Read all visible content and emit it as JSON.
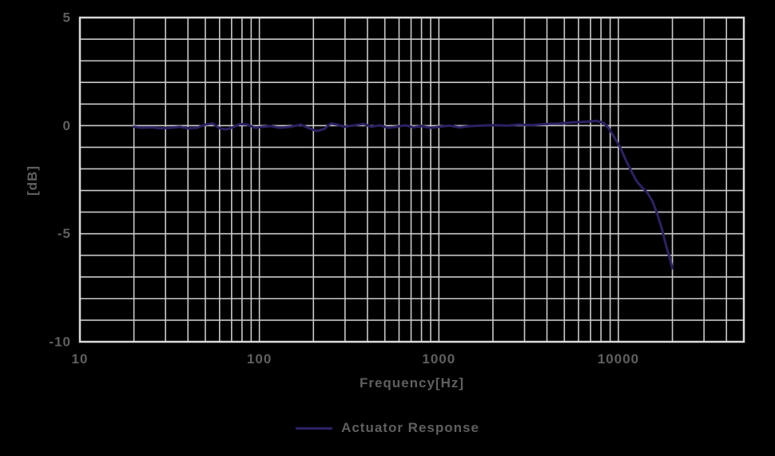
{
  "colors": {
    "background": "#000000",
    "grid": "#c9c9c9",
    "axis_border": "#d9d9d9",
    "text": "#5f5f5f",
    "line": "#2b2264"
  },
  "chart_data": {
    "type": "line",
    "title": "",
    "xlabel": "Frequency[Hz]",
    "ylabel": "[dB]",
    "xscale": "log",
    "xlim": [
      10,
      50000
    ],
    "ylim": [
      -10,
      5
    ],
    "grid": true,
    "grid_note": "horizontal gridline every 1 dB, vertical log-decade gridlines with minors 2-9",
    "x_tick_labels": [
      {
        "value": 10,
        "label": "10"
      },
      {
        "value": 100,
        "label": "100"
      },
      {
        "value": 1000,
        "label": "1000"
      },
      {
        "value": 10000,
        "label": "10000"
      }
    ],
    "y_tick_labels": [
      {
        "value": 5,
        "label": "5"
      },
      {
        "value": 0,
        "label": "0"
      },
      {
        "value": -5,
        "label": "-5"
      },
      {
        "value": -10,
        "label": "-10"
      }
    ],
    "legend": {
      "position": "bottom-center",
      "entries": [
        {
          "label": "Actuator Response",
          "color": "#2b2264"
        }
      ]
    },
    "series": [
      {
        "name": "Actuator Response",
        "color": "#2b2264",
        "line_width": 3,
        "points": [
          [
            20,
            -0.05
          ],
          [
            22,
            -0.1
          ],
          [
            25,
            -0.08
          ],
          [
            28,
            -0.12
          ],
          [
            32,
            -0.1
          ],
          [
            36,
            -0.05
          ],
          [
            40,
            -0.12
          ],
          [
            45,
            -0.1
          ],
          [
            50,
            0.05
          ],
          [
            55,
            0.1
          ],
          [
            60,
            -0.12
          ],
          [
            65,
            -0.18
          ],
          [
            70,
            -0.1
          ],
          [
            78,
            0.08
          ],
          [
            85,
            0.05
          ],
          [
            95,
            -0.1
          ],
          [
            105,
            -0.05
          ],
          [
            115,
            -0.02
          ],
          [
            130,
            -0.1
          ],
          [
            150,
            -0.05
          ],
          [
            170,
            0.05
          ],
          [
            190,
            -0.12
          ],
          [
            210,
            -0.25
          ],
          [
            230,
            -0.15
          ],
          [
            250,
            0.1
          ],
          [
            270,
            0.05
          ],
          [
            300,
            -0.05
          ],
          [
            340,
            0.02
          ],
          [
            380,
            0.08
          ],
          [
            420,
            -0.05
          ],
          [
            470,
            0.02
          ],
          [
            520,
            -0.1
          ],
          [
            580,
            -0.05
          ],
          [
            650,
            0.02
          ],
          [
            720,
            -0.08
          ],
          [
            800,
            -0.02
          ],
          [
            900,
            -0.1
          ],
          [
            1000,
            -0.05
          ],
          [
            1150,
            0.0
          ],
          [
            1300,
            -0.08
          ],
          [
            1500,
            -0.02
          ],
          [
            1700,
            0.0
          ],
          [
            2000,
            0.02
          ],
          [
            2400,
            0.0
          ],
          [
            2800,
            0.05
          ],
          [
            3300,
            0.02
          ],
          [
            4000,
            0.08
          ],
          [
            4700,
            0.1
          ],
          [
            5500,
            0.15
          ],
          [
            6500,
            0.18
          ],
          [
            7500,
            0.22
          ],
          [
            8200,
            0.15
          ],
          [
            8800,
            -0.1
          ],
          [
            9500,
            -0.55
          ],
          [
            10300,
            -1.05
          ],
          [
            11000,
            -1.6
          ],
          [
            11800,
            -2.1
          ],
          [
            12600,
            -2.55
          ],
          [
            13500,
            -2.85
          ],
          [
            14500,
            -3.1
          ],
          [
            15500,
            -3.5
          ],
          [
            16500,
            -4.1
          ],
          [
            17500,
            -4.8
          ],
          [
            18500,
            -5.6
          ],
          [
            19300,
            -6.1
          ],
          [
            20000,
            -6.6
          ]
        ]
      }
    ]
  }
}
